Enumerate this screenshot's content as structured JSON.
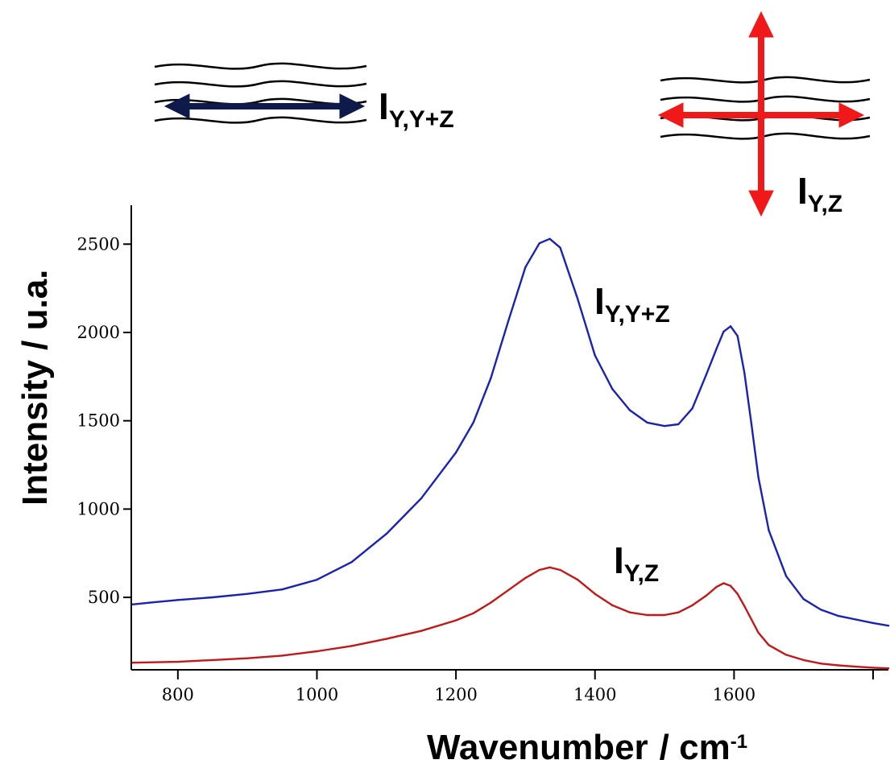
{
  "chart_data": {
    "type": "line",
    "xlabel": "Wavenumber",
    "xlabel_unit": "/ cm",
    "xlabel_unit_sup": "-1",
    "ylabel": "Intensity  / u.a.",
    "xlim": [
      733,
      1822
    ],
    "ylim": [
      90,
      2720
    ],
    "x_ticks": [
      800,
      1000,
      1200,
      1400,
      1600
    ],
    "x_minor_ticks": [
      1800
    ],
    "y_ticks": [
      500,
      1000,
      1500,
      2000,
      2500
    ],
    "grid": false,
    "series": [
      {
        "name_main": "I",
        "name_sub": "Y,Y+Z",
        "color": "#1a22b4",
        "x": [
          735,
          760,
          800,
          850,
          900,
          950,
          1000,
          1050,
          1100,
          1150,
          1200,
          1225,
          1250,
          1275,
          1300,
          1320,
          1335,
          1350,
          1375,
          1400,
          1425,
          1450,
          1475,
          1500,
          1520,
          1540,
          1560,
          1575,
          1585,
          1595,
          1605,
          1615,
          1625,
          1635,
          1650,
          1675,
          1700,
          1725,
          1750,
          1775,
          1800,
          1822
        ],
        "values": [
          460,
          470,
          485,
          500,
          520,
          545,
          600,
          700,
          860,
          1060,
          1320,
          1490,
          1740,
          2060,
          2370,
          2505,
          2530,
          2480,
          2190,
          1870,
          1680,
          1560,
          1490,
          1470,
          1480,
          1570,
          1760,
          1910,
          2005,
          2035,
          1980,
          1770,
          1480,
          1180,
          880,
          620,
          490,
          430,
          395,
          375,
          355,
          340
        ]
      },
      {
        "name_main": "I",
        "name_sub": "Y,Z",
        "color": "#c21818",
        "x": [
          735,
          800,
          850,
          900,
          950,
          1000,
          1050,
          1100,
          1150,
          1200,
          1225,
          1250,
          1275,
          1300,
          1320,
          1335,
          1350,
          1375,
          1400,
          1425,
          1450,
          1475,
          1500,
          1520,
          1540,
          1560,
          1575,
          1585,
          1595,
          1605,
          1615,
          1625,
          1635,
          1650,
          1675,
          1700,
          1725,
          1750,
          1775,
          1800,
          1822
        ],
        "values": [
          130,
          135,
          145,
          155,
          170,
          195,
          225,
          265,
          310,
          370,
          410,
          470,
          540,
          610,
          655,
          670,
          655,
          600,
          520,
          455,
          415,
          400,
          400,
          415,
          455,
          510,
          560,
          580,
          565,
          520,
          450,
          375,
          300,
          230,
          175,
          145,
          125,
          115,
          108,
          102,
          98
        ]
      }
    ]
  },
  "legend": {
    "parallel_label_main": "I",
    "parallel_label_sub": "Y,Y+Z",
    "parallel_arrow_color": "#0d1a4a",
    "cross_label_main": "I",
    "cross_label_sub": "Y,Z",
    "cross_arrow_color": "#f01818",
    "wave_color": "#000000"
  }
}
